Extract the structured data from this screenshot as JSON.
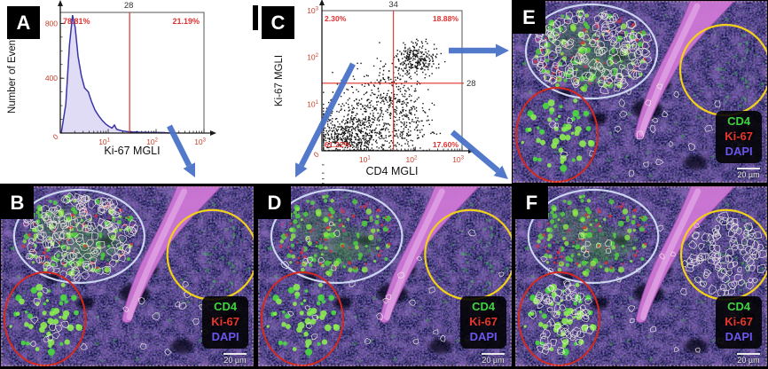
{
  "panels": {
    "a": {
      "label": "A"
    },
    "b": {
      "label": "B"
    },
    "c": {
      "label": "C"
    },
    "d": {
      "label": "D"
    },
    "e": {
      "label": "E"
    },
    "f": {
      "label": "F"
    }
  },
  "arrows": [
    {
      "from": "A",
      "to": "B"
    },
    {
      "from": "C",
      "to": "D"
    },
    {
      "from": "C",
      "to": "E"
    },
    {
      "from": "C",
      "to": "F"
    }
  ],
  "chart_data": [
    {
      "panel": "A",
      "type": "line",
      "title": "",
      "xlabel": "Ki-67 MGLI",
      "ylabel": "Number of Events",
      "x_scale": "log",
      "x_range": [
        1,
        1000
      ],
      "y_range": [
        0,
        880
      ],
      "yticks": [
        0,
        400,
        800
      ],
      "xticks": [
        "10^1",
        "10^2",
        "10^3"
      ],
      "origin_label": "0",
      "threshold": {
        "value": 28,
        "label": "28"
      },
      "percent_left": "78.81%",
      "percent_right": "21.19%",
      "line_color": "#3a35a8",
      "fill_color": "#dedaf4",
      "gate_color": "#e0302a",
      "curve": [
        [
          1.05,
          0
        ],
        [
          1.3,
          210
        ],
        [
          1.55,
          640
        ],
        [
          1.8,
          860
        ],
        [
          2.05,
          770
        ],
        [
          2.35,
          560
        ],
        [
          2.75,
          420
        ],
        [
          3.2,
          330
        ],
        [
          3.85,
          300
        ],
        [
          4.5,
          228
        ],
        [
          5.3,
          168
        ],
        [
          6.3,
          126
        ],
        [
          7.5,
          92
        ],
        [
          9,
          64
        ],
        [
          10.5,
          48
        ],
        [
          12,
          36
        ],
        [
          13.5,
          58
        ],
        [
          15,
          28
        ],
        [
          17,
          22
        ],
        [
          20,
          15
        ],
        [
          24,
          11
        ],
        [
          28,
          9
        ],
        [
          33,
          7
        ],
        [
          40,
          8
        ],
        [
          48,
          5
        ],
        [
          60,
          6
        ],
        [
          75,
          4
        ],
        [
          95,
          5
        ],
        [
          120,
          4
        ],
        [
          150,
          3
        ],
        [
          190,
          0
        ]
      ]
    },
    {
      "panel": "C",
      "type": "scatter",
      "title": "",
      "xlabel": "CD4 MGLI",
      "ylabel": "Ki-67 MGLI",
      "x_scale": "log",
      "y_scale": "log",
      "x_range": [
        1,
        1000
      ],
      "y_range": [
        1,
        1000
      ],
      "xticks": [
        "10^1",
        "10^2",
        "10^3"
      ],
      "yticks": [
        "10^1",
        "10^2",
        "10^3"
      ],
      "origin_label": "0",
      "gate_x": {
        "value": 34,
        "label": "34"
      },
      "gate_y": {
        "value": 28,
        "label": "28"
      },
      "quadrants": {
        "upper_left": "2.30%",
        "upper_right": "18.88%",
        "lower_left": "61.22%",
        "lower_right": "17.60%"
      },
      "dot_color": "#000000",
      "gate_color": "#e0302a",
      "clusters": [
        {
          "cx": 0.55,
          "cy": 0.35,
          "sx": 0.38,
          "sy": 0.28,
          "n": 500
        },
        {
          "cx": 1.0,
          "cy": 0.75,
          "sx": 0.45,
          "sy": 0.4,
          "n": 300
        },
        {
          "cx": 1.55,
          "cy": 1.25,
          "sx": 0.35,
          "sy": 0.45,
          "n": 200
        },
        {
          "cx": 2.0,
          "cy": 1.97,
          "sx": 0.22,
          "sy": 0.17,
          "n": 260
        },
        {
          "cx": 1.85,
          "cy": 0.6,
          "sx": 0.28,
          "sy": 0.35,
          "n": 140
        }
      ]
    }
  ],
  "microscopy": {
    "legend": {
      "items": [
        {
          "label": "CD4",
          "color": "#3ed43e"
        },
        {
          "label": "Ki-67",
          "color": "#e8362c"
        },
        {
          "label": "DAPI",
          "color": "#6a55ee"
        }
      ]
    },
    "scale_bar": "20 µm",
    "regions": [
      {
        "name": "white-ellipse",
        "color": "#ccd6f0"
      },
      {
        "name": "red-circle",
        "color": "#d5281e"
      },
      {
        "name": "yellow-circle",
        "color": "#f2d118"
      }
    ],
    "panels": {
      "b": {
        "dense_outline_regions": [
          "white-ellipse"
        ]
      },
      "d": {
        "dense_outline_regions": []
      },
      "e": {
        "dense_outline_regions": [
          "white-ellipse"
        ]
      },
      "f": {
        "dense_outline_regions": [
          "yellow-circle",
          "red-circle"
        ]
      }
    }
  }
}
